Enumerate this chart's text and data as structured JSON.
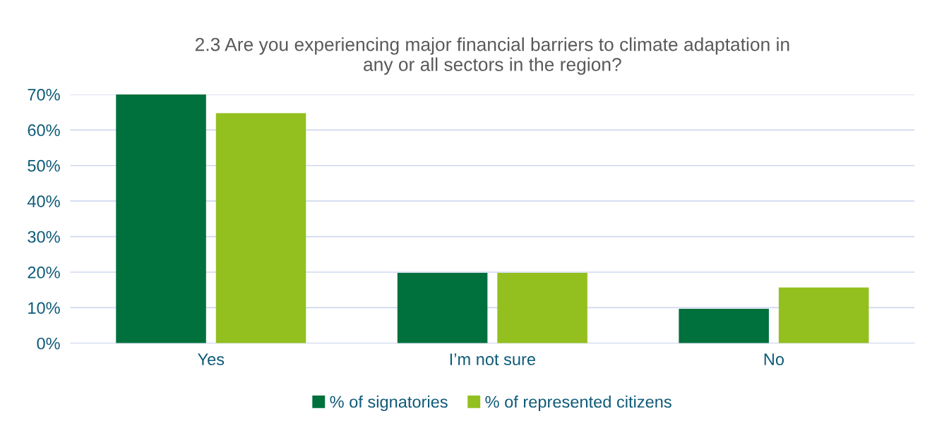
{
  "chart_data": {
    "type": "bar",
    "title": "2.3 Are you experiencing major financial barriers to climate adaptation in\nany or all sectors in the region?",
    "categories": [
      "Yes",
      "I’m not sure",
      "No"
    ],
    "series": [
      {
        "name": "% of signatories",
        "color": "#00703c",
        "values": [
          70,
          19.8,
          9.7
        ]
      },
      {
        "name": "% of represented citizens",
        "color": "#93c01f",
        "values": [
          64.7,
          19.8,
          15.7
        ]
      }
    ],
    "ylim": [
      0,
      70
    ],
    "yticks": [
      {
        "value": 0,
        "label": "0%"
      },
      {
        "value": 10,
        "label": "10%"
      },
      {
        "value": 20,
        "label": "20%"
      },
      {
        "value": 30,
        "label": "30%"
      },
      {
        "value": 40,
        "label": "40%"
      },
      {
        "value": 50,
        "label": "50%"
      },
      {
        "value": 60,
        "label": "60%"
      },
      {
        "value": 70,
        "label": "70%"
      }
    ],
    "grid": "y",
    "legend": "bottom"
  }
}
